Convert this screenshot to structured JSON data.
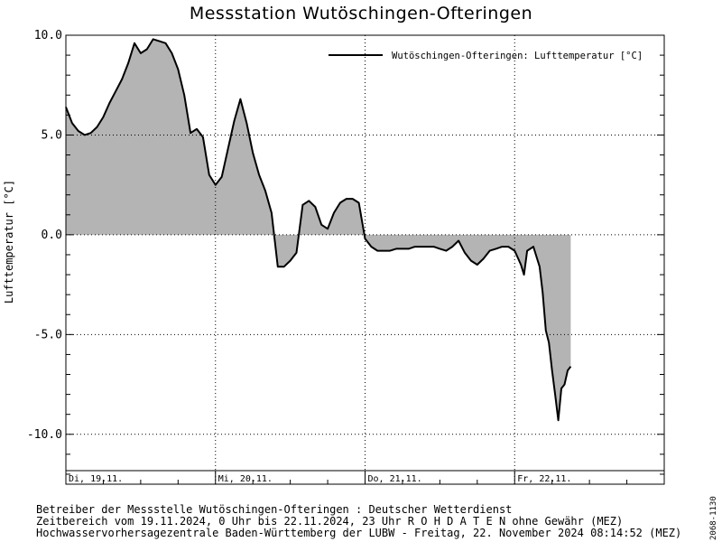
{
  "title": "Messstation Wutöschingen-Ofteringen",
  "chart_data": {
    "type": "area",
    "xlabel": "",
    "ylabel": "Lufttemperatur [°C]",
    "ylim": [
      -12.5,
      10.0
    ],
    "xlim": [
      0,
      96
    ],
    "y_ticks_labeled": [
      10.0,
      5.0,
      0.0,
      -5.0,
      -10.0
    ],
    "y_tick_labels": [
      "10.0",
      "5.0",
      "0.0",
      "-5.0",
      "-10.0"
    ],
    "x_day_labels": [
      "Di, 19.11.",
      "Mi, 20.11.",
      "Do, 21.11.",
      "Fr, 22.11."
    ],
    "grid": true,
    "legend_position": "top-right",
    "series": [
      {
        "name": "Wutöschingen-Ofteringen: Lufttemperatur  [°C]",
        "x": [
          0,
          1,
          2,
          3,
          4,
          5,
          6,
          7,
          8,
          9,
          10,
          11,
          12,
          13,
          14,
          15,
          16,
          17,
          18,
          19,
          20,
          21,
          22,
          23,
          24,
          25,
          26,
          27,
          28,
          29,
          30,
          31,
          32,
          33,
          34,
          35,
          36,
          37,
          38,
          39,
          40,
          41,
          42,
          43,
          44,
          45,
          46,
          47,
          48,
          49,
          50,
          51,
          52,
          53,
          54,
          55,
          56,
          57,
          58,
          59,
          60,
          61,
          62,
          63,
          64,
          65,
          66,
          67,
          68,
          69,
          70,
          71,
          72,
          73,
          73.5,
          74,
          75,
          76,
          76.5,
          77,
          77.5,
          78,
          78.5,
          79,
          79.5,
          80,
          80.5,
          81
        ],
        "y": [
          6.4,
          5.6,
          5.2,
          5.0,
          5.1,
          5.4,
          5.9,
          6.6,
          7.2,
          7.8,
          8.6,
          9.6,
          9.1,
          9.3,
          9.8,
          9.7,
          9.6,
          9.1,
          8.3,
          7.0,
          5.1,
          5.3,
          4.9,
          3.0,
          2.5,
          2.9,
          4.3,
          5.7,
          6.8,
          5.6,
          4.1,
          3.0,
          2.2,
          1.1,
          -1.6,
          -1.6,
          -1.3,
          -0.9,
          1.5,
          1.7,
          1.4,
          0.5,
          0.3,
          1.1,
          1.6,
          1.8,
          1.8,
          1.6,
          -0.2,
          -0.6,
          -0.8,
          -0.8,
          -0.8,
          -0.7,
          -0.7,
          -0.7,
          -0.6,
          -0.6,
          -0.6,
          -0.6,
          -0.7,
          -0.8,
          -0.6,
          -0.3,
          -0.9,
          -1.3,
          -1.5,
          -1.2,
          -0.8,
          -0.7,
          -0.6,
          -0.6,
          -0.8,
          -1.5,
          -2.0,
          -0.8,
          -0.6,
          -1.6,
          -2.9,
          -4.8,
          -5.4,
          -6.8,
          -8.0,
          -9.3,
          -7.7,
          -7.5,
          -6.8,
          -6.6
        ]
      }
    ],
    "colors": {
      "fill": "#b4b4b4",
      "line": "#000000",
      "grid": "#000000",
      "frame": "#000000"
    }
  },
  "footer": {
    "line1": "Betreiber der Messstelle Wutöschingen-Ofteringen : Deutscher Wetterdienst",
    "line2": "Zeitbereich vom 19.11.2024, 0 Uhr bis 22.11.2024, 23 Uhr   R O H D A T E N ohne Gewähr (MEZ)",
    "line3": "Hochwasservorhersagezentrale Baden-Württemberg der LUBW - Freitag, 22. November 2024 08:14:52 (MEZ)"
  },
  "side_code": "2068-1130"
}
